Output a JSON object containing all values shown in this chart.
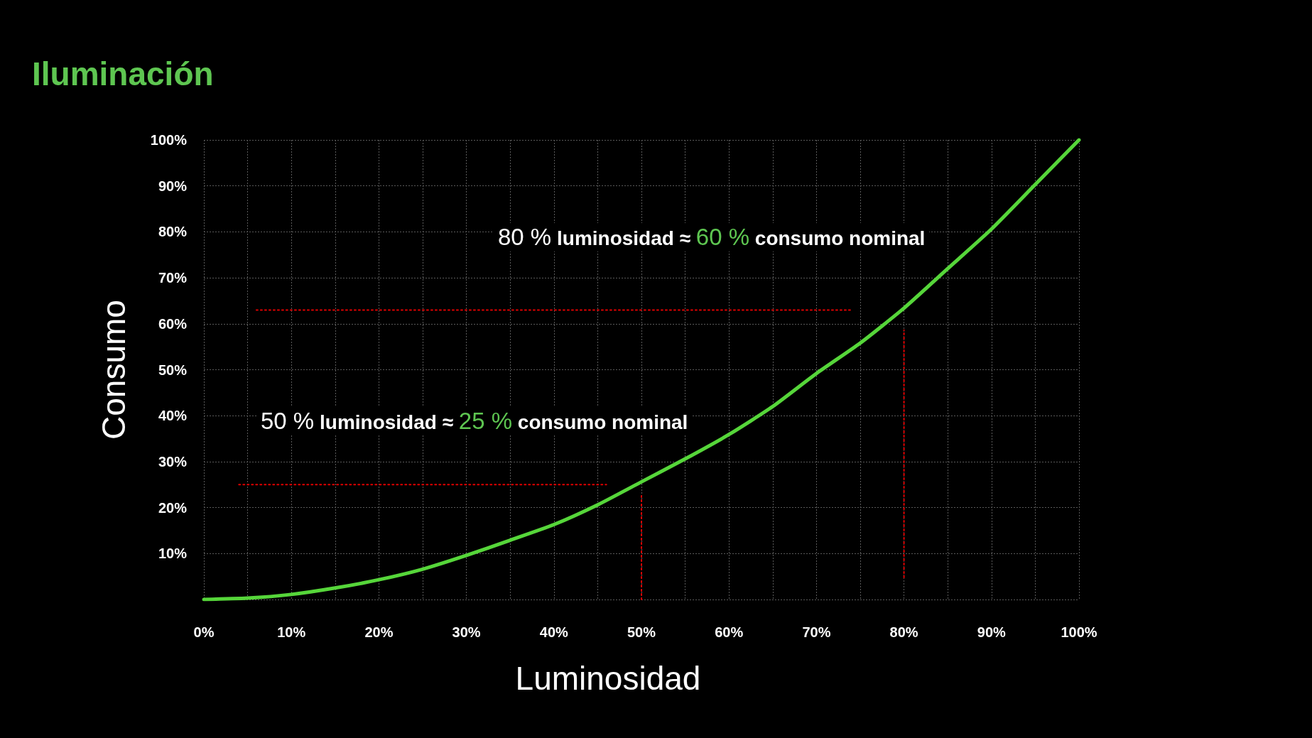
{
  "chart_data": {
    "type": "line",
    "title": "Iluminación",
    "xlabel": "Luminosidad",
    "ylabel": "Consumo",
    "annotations": [
      "80 % luminosidad ≈ 60 % consumo nominal",
      "50 % luminosidad ≈ 25 % consumo nominal"
    ],
    "xlim": [
      0,
      100
    ],
    "ylim": [
      0,
      100
    ],
    "xticks": [
      {
        "value": 0,
        "label": "0%"
      },
      {
        "value": 5,
        "label": null
      },
      {
        "value": 10,
        "label": "10%"
      },
      {
        "value": 15,
        "label": null
      },
      {
        "value": 20,
        "label": "20%"
      },
      {
        "value": 25,
        "label": null
      },
      {
        "value": 30,
        "label": "30%"
      },
      {
        "value": 35,
        "label": null
      },
      {
        "value": 40,
        "label": "40%"
      },
      {
        "value": 45,
        "label": null
      },
      {
        "value": 50,
        "label": "50%"
      },
      {
        "value": 55,
        "label": null
      },
      {
        "value": 60,
        "label": "60%"
      },
      {
        "value": 65,
        "label": null
      },
      {
        "value": 70,
        "label": "70%"
      },
      {
        "value": 75,
        "label": null
      },
      {
        "value": 80,
        "label": "80%"
      },
      {
        "value": 85,
        "label": null
      },
      {
        "value": 90,
        "label": "90%"
      },
      {
        "value": 95,
        "label": null
      },
      {
        "value": 100,
        "label": "100%"
      }
    ],
    "yticks": [
      {
        "value": 0,
        "label": null
      },
      {
        "value": 10,
        "label": "10%"
      },
      {
        "value": 20,
        "label": "20%"
      },
      {
        "value": 30,
        "label": "30%"
      },
      {
        "value": 40,
        "label": "40%"
      },
      {
        "value": 50,
        "label": "50%"
      },
      {
        "value": 60,
        "label": "60%"
      },
      {
        "value": 70,
        "label": "70%"
      },
      {
        "value": 80,
        "label": "80%"
      },
      {
        "value": 90,
        "label": "90%"
      },
      {
        "value": 100,
        "label": "100%"
      }
    ],
    "grid": true,
    "marker": "none",
    "series": [
      {
        "color": "#56d63a",
        "x": [
          0,
          5,
          10,
          15,
          20,
          25,
          30,
          35,
          40,
          45,
          50,
          55,
          60,
          65,
          70,
          75,
          80,
          85,
          90,
          95,
          100
        ],
        "values": [
          0,
          0.3,
          1.1,
          2.5,
          4.3,
          6.6,
          9.6,
          12.9,
          16.3,
          20.6,
          25.6,
          30.6,
          35.9,
          42.0,
          49.2,
          55.8,
          63.4,
          72.0,
          80.6,
          90.3,
          100
        ]
      },
      {
        "color": "#e00000",
        "line_style": "dotted",
        "x": [
          6,
          74
        ],
        "values": [
          63,
          63
        ]
      },
      {
        "color": "#e00000",
        "line_style": "dotted",
        "x": [
          80,
          80
        ],
        "values": [
          4.8,
          58.6
        ]
      },
      {
        "color": "#e00000",
        "line_style": "dotted",
        "x": [
          4,
          46
        ],
        "values": [
          25,
          25
        ]
      },
      {
        "color": "#e00000",
        "line_style": "dotted",
        "x": [
          50,
          50
        ],
        "values": [
          0,
          23
        ]
      }
    ]
  }
}
